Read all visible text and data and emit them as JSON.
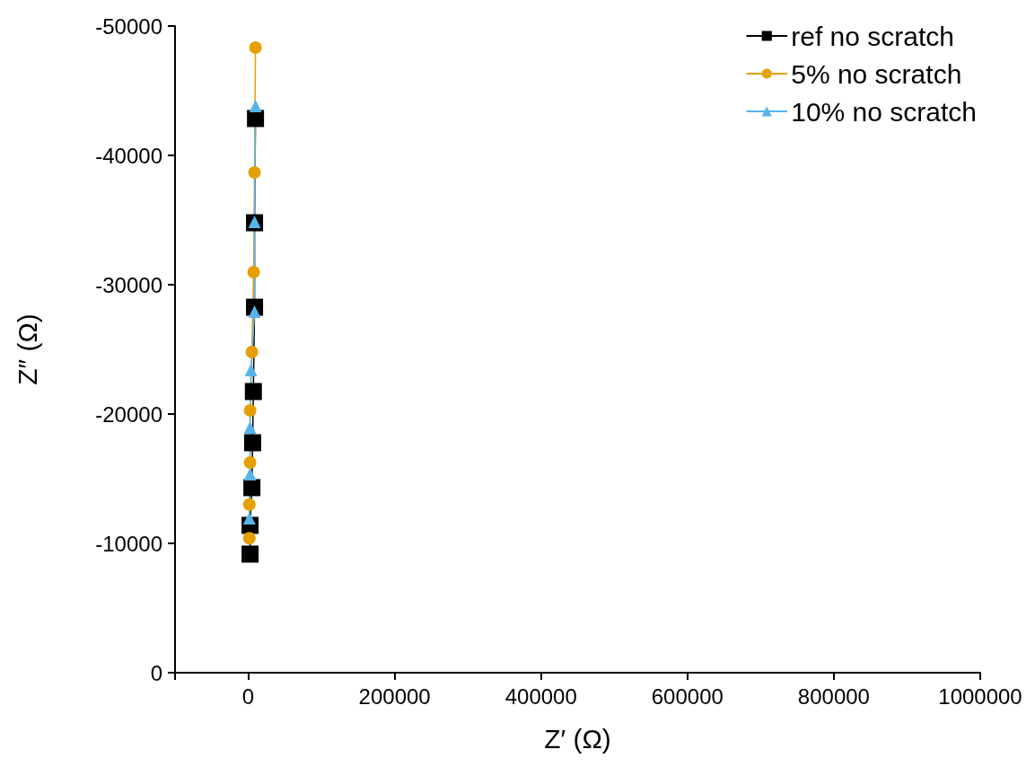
{
  "chart_data": {
    "type": "line",
    "xlabel": "Z′ (Ω)",
    "ylabel": "Z″ (Ω)",
    "xlim": [
      -100000,
      1000000
    ],
    "xticks": [
      {
        "value": -100000,
        "label": null
      },
      0,
      200000,
      400000,
      600000,
      800000,
      1000000
    ],
    "ylim": [
      0,
      -50000
    ],
    "yticks": [
      0,
      -10000,
      -20000,
      -30000,
      -40000,
      -50000
    ],
    "grid": false,
    "legend": "top right",
    "line_style": "solid",
    "series": [
      {
        "name": "ref no scratch",
        "color": "#000000",
        "marker": "square",
        "x": [
          2500,
          2500,
          5000,
          6000,
          7000,
          8600,
          8600,
          9900
        ],
        "values": [
          -9170,
          -11390,
          -14310,
          -17780,
          -21740,
          -28260,
          -34790,
          -42850
        ]
      },
      {
        "name": "5% no scratch",
        "color": "#e69f00",
        "marker": "circle",
        "x": [
          1500,
          1500,
          2500,
          2500,
          5000,
          7400,
          8600,
          9900
        ],
        "values": [
          -10400,
          -13000,
          -16250,
          -20280,
          -24800,
          -30970,
          -38680,
          -48330
        ]
      },
      {
        "name": "10% no scratch",
        "color": "#56b4e9",
        "marker": "triangle",
        "x": [
          1500,
          2500,
          2500,
          3700,
          8600,
          8600,
          9900
        ],
        "values": [
          -11940,
          -15350,
          -18960,
          -23400,
          -27920,
          -34860,
          -43820
        ]
      }
    ]
  }
}
